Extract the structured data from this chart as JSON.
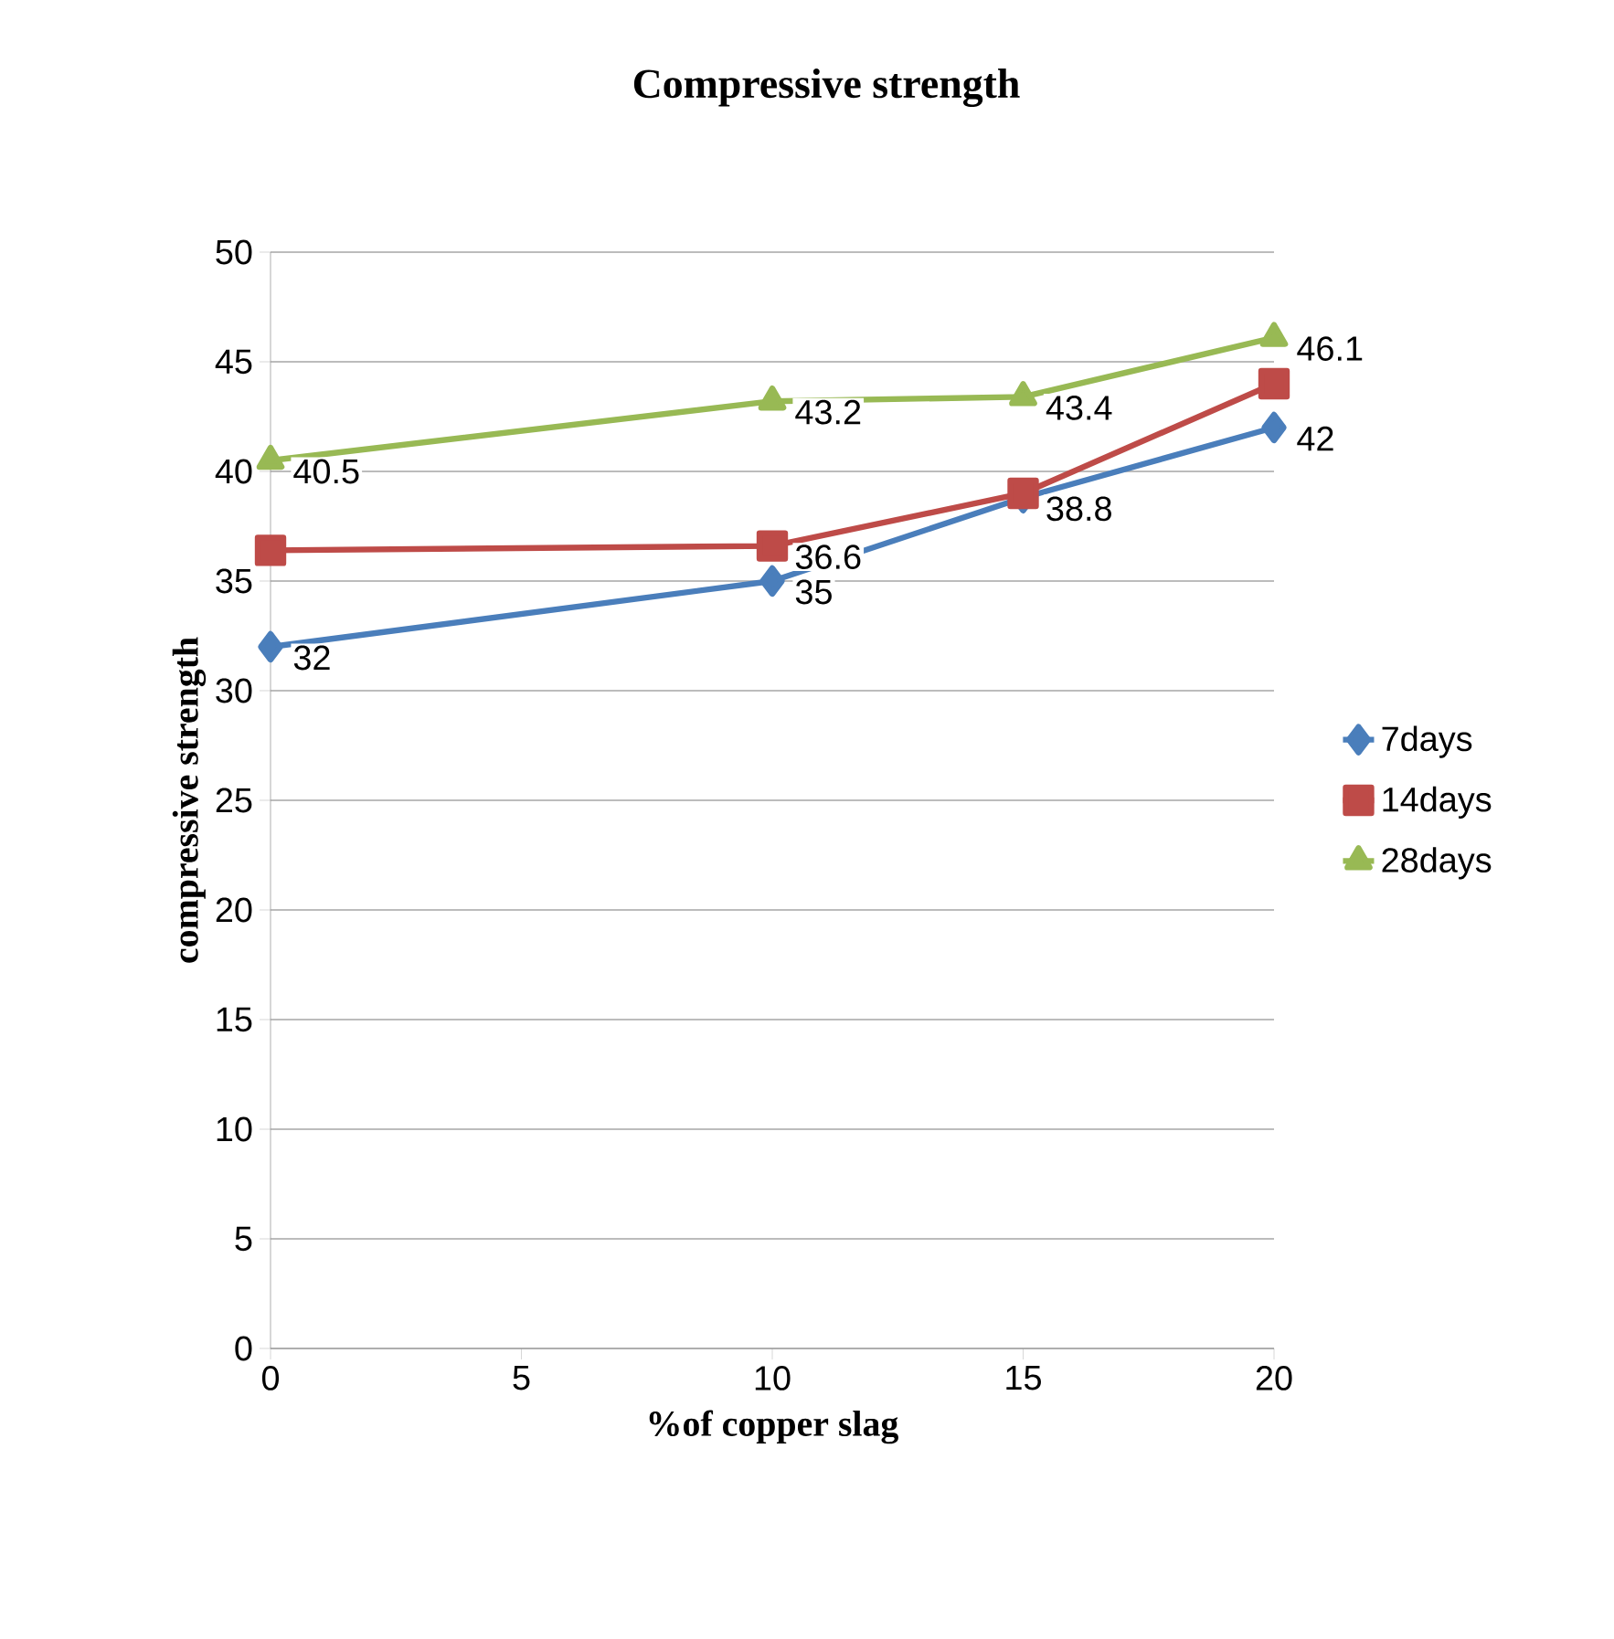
{
  "chart_data": {
    "type": "line",
    "title": "Compressive strength",
    "xlabel": "%of copper slag",
    "ylabel": "compressive strength",
    "x": [
      0,
      10,
      15,
      20
    ],
    "series": [
      {
        "name": "7days",
        "color": "#4a7ebb",
        "marker": "diamond",
        "values": [
          32,
          35,
          38.8,
          42
        ],
        "value_labels": [
          "32",
          "35",
          "38.8",
          "42"
        ]
      },
      {
        "name": "14days",
        "color": "#be4b48",
        "marker": "square",
        "values": [
          36.4,
          36.6,
          39,
          44
        ],
        "value_labels": [
          null,
          "36.6",
          null,
          null
        ]
      },
      {
        "name": "28days",
        "color": "#98b954",
        "marker": "triangle",
        "values": [
          40.5,
          43.2,
          43.4,
          46.1
        ],
        "value_labels": [
          "40.5",
          "43.2",
          "43.4",
          "46.1"
        ]
      }
    ],
    "xlim": [
      0,
      20
    ],
    "xticks": [
      0,
      5,
      10,
      15,
      20
    ],
    "ylim": [
      0,
      50
    ],
    "yticks": [
      0,
      5,
      10,
      15,
      20,
      25,
      30,
      35,
      40,
      45,
      50
    ],
    "grid": "y",
    "legend": "right",
    "line_style": "solid"
  }
}
